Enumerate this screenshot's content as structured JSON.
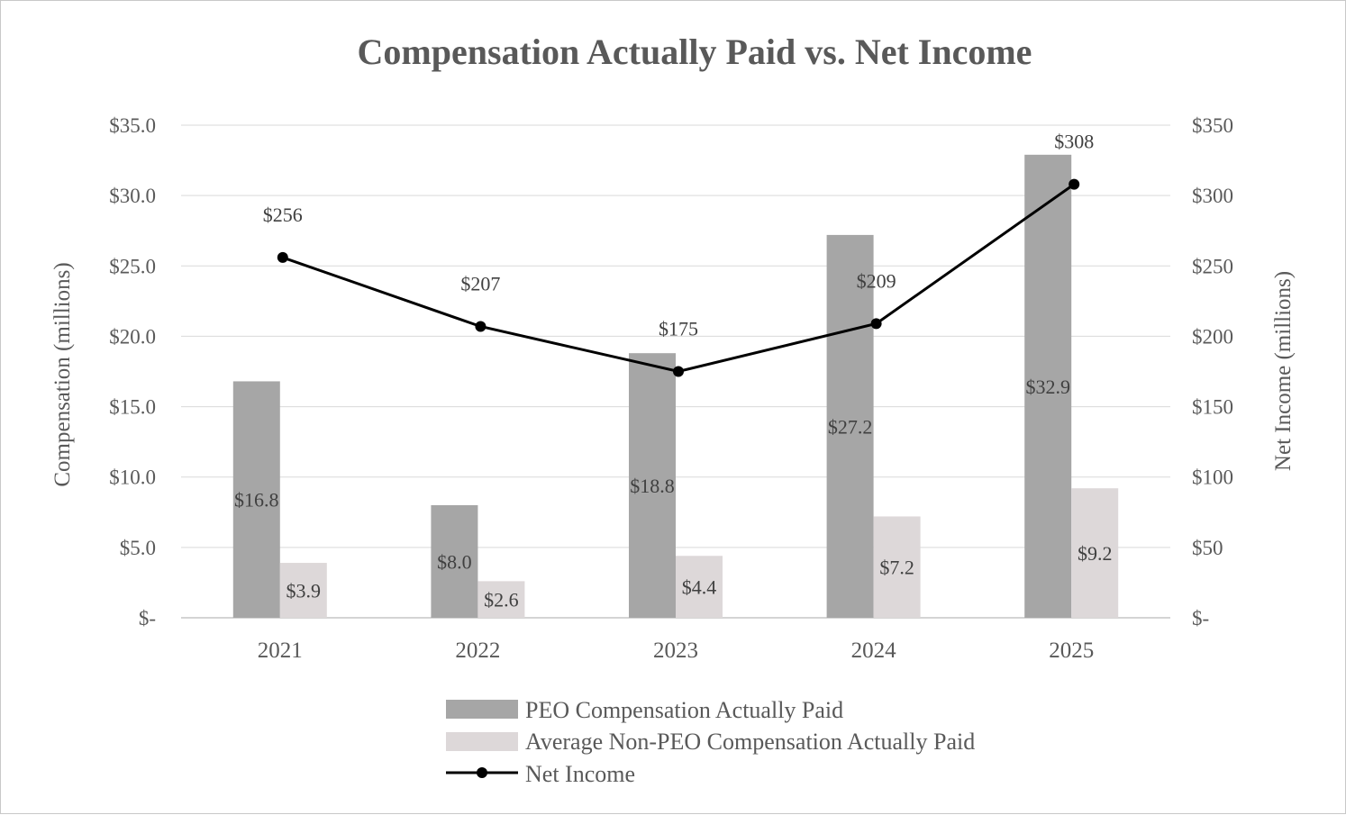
{
  "chart_data": {
    "type": "bar",
    "title": "Compensation Actually Paid vs. Net Income",
    "categories": [
      "2021",
      "2022",
      "2023",
      "2024",
      "2025"
    ],
    "y_left": {
      "label": "Compensation (millions)",
      "range": [
        0,
        35
      ],
      "ticks": [
        0,
        5,
        10,
        15,
        20,
        25,
        30,
        35
      ],
      "tick_labels": [
        "$-",
        "$5.0",
        "$10.0",
        "$15.0",
        "$20.0",
        "$25.0",
        "$30.0",
        "$35.0"
      ]
    },
    "y_right": {
      "label": "Net Income (millions)",
      "range": [
        0,
        350
      ],
      "ticks": [
        0,
        50,
        100,
        150,
        200,
        250,
        300,
        350
      ],
      "tick_labels": [
        "$-",
        "$50",
        "$100",
        "$150",
        "$200",
        "$250",
        "$300",
        "$350"
      ]
    },
    "grid": true,
    "legend_position": "bottom",
    "series": [
      {
        "name": "PEO Compensation Actually Paid",
        "type": "bar",
        "axis": "left",
        "color": "#a6a6a6",
        "values": [
          16.8,
          8.0,
          18.8,
          27.2,
          32.9
        ],
        "data_labels": [
          "$16.8",
          "$8.0",
          "$18.8",
          "$27.2",
          "$32.9"
        ]
      },
      {
        "name": "Average Non-PEO Compensation Actually Paid",
        "type": "bar",
        "axis": "left",
        "color": "#ddd8d9",
        "values": [
          3.9,
          2.6,
          4.4,
          7.2,
          9.2
        ],
        "data_labels": [
          "$3.9",
          "$2.6",
          "$4.4",
          "$7.2",
          "$9.2"
        ]
      },
      {
        "name": "Net Income",
        "type": "line",
        "axis": "right",
        "color": "#000000",
        "values": [
          256,
          207,
          175,
          209,
          308
        ],
        "data_labels": [
          "$256",
          "$207",
          "$175",
          "$209",
          "$308"
        ]
      }
    ]
  }
}
